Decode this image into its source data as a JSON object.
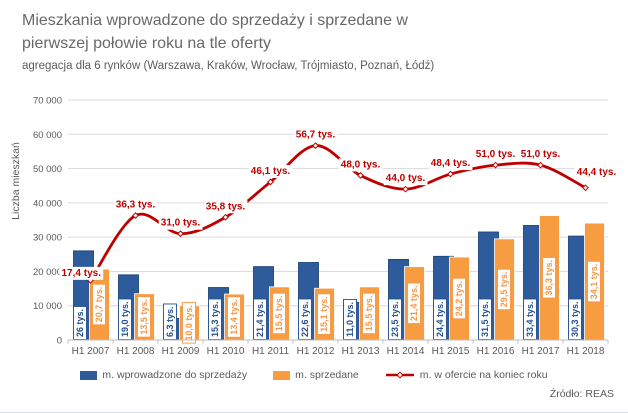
{
  "header": {
    "title": "Mieszkania wprowadzone do sprzedaży i sprzedane w pierwszej połowie roku na tle oferty",
    "subtitle": "agregacja dla 6 rynków (Warszawa, Kraków, Wrocław, Trójmiasto, Poznań, Łódź)"
  },
  "chart_data": {
    "type": "bar+line",
    "title": "Mieszkania wprowadzone do sprzedaży i sprzedane w pierwszej połowie roku na tle oferty",
    "subtitle": "agregacja dla 6 rynków (Warszawa, Kraków, Wrocław, Trójmiasto, Poznań, Łódź)",
    "xlabel": "",
    "ylabel": "Liczba mieszkań",
    "ylim": [
      0,
      70000
    ],
    "ytick_step": 10000,
    "ytick_labels": [
      "0",
      "10 000",
      "20 000",
      "30 000",
      "40 000",
      "50 000",
      "60 000",
      "70 000"
    ],
    "grid": true,
    "legend_position": "bottom",
    "categories": [
      "H1 2007",
      "H1 2008",
      "H1 2009",
      "H1 2010",
      "H1 2011",
      "H1 2012",
      "H1 2013",
      "H1 2014",
      "H1 2015",
      "H1 2016",
      "H1 2017",
      "H1 2018"
    ],
    "series": [
      {
        "name": "m. wprowadzone do sprzedaży",
        "type": "bar",
        "color": "#2E5B9B",
        "edge_color": "#1E4678",
        "label_color": "#24508F",
        "values": [
          26000,
          19000,
          6300,
          15300,
          21400,
          22600,
          11000,
          23500,
          24400,
          31500,
          33400,
          30300
        ],
        "labels": [
          "26 tys.",
          "19,0 tys.",
          "6,3 tys.",
          "15,3 tys.",
          "21,4 tys.",
          "22,6 tys.",
          "11,0 tys.",
          "23,5 tys.",
          "24,4 tys.",
          "31,5 tys.",
          "33,4 tys.",
          "30,3 tys."
        ]
      },
      {
        "name": "m. sprzedane",
        "type": "bar",
        "color": "#F89C42",
        "edge_color": "#F89C42",
        "label_color": "#F79646",
        "values": [
          20700,
          13500,
          10000,
          13400,
          15500,
          15100,
          15500,
          21400,
          24200,
          29500,
          36300,
          34100
        ],
        "labels": [
          "20,7 tys.",
          "13,5 tys.",
          "10,0 tys.",
          "13,4 tys.",
          "15,5 tys.",
          "15,1 tys.",
          "15,5 tys.",
          "21,4 tys.",
          "24,2 tys.",
          "29,5 tys.",
          "36,3 tys.",
          "34,1 tys."
        ]
      },
      {
        "name": "m. w ofercie na koniec roku",
        "type": "line",
        "color": "#C00000",
        "label_color": "#C00000",
        "values": [
          17400,
          36300,
          31000,
          35800,
          46100,
          56700,
          48000,
          44000,
          48400,
          51000,
          51000,
          44400
        ],
        "labels": [
          "17,4 tys.",
          "36,3 tys.",
          "31,0 tys.",
          "35,8 tys.",
          "46,1 tys.",
          "56,7 tys.",
          "48,0 tys.",
          "44,0 tys.",
          "48,4 tys.",
          "51,0 tys.",
          "51,0 tys.",
          "44,4 tys."
        ]
      }
    ]
  },
  "footer": {
    "source": "Źródło: REAS"
  }
}
